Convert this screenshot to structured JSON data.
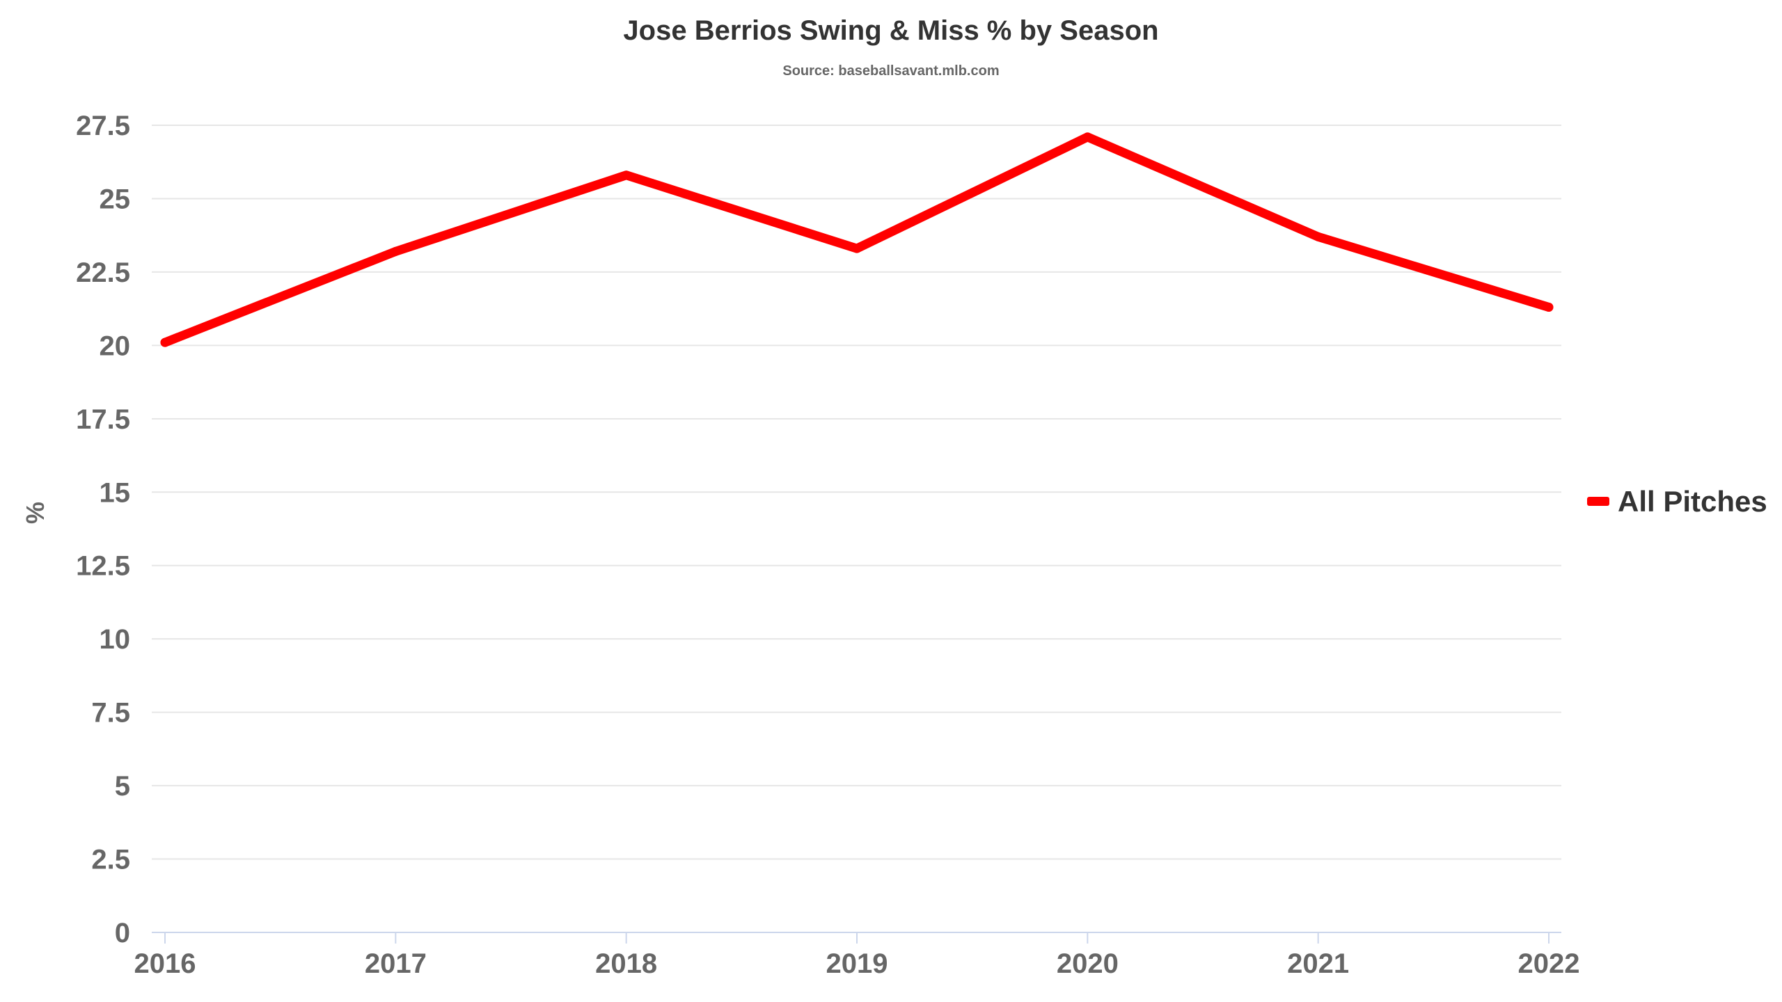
{
  "chart_data": {
    "type": "line",
    "title": "Jose Berrios Swing & Miss % by Season",
    "subtitle": "Source: baseballsavant.mlb.com",
    "xlabel": "",
    "ylabel": "%",
    "categories": [
      "2016",
      "2017",
      "2018",
      "2019",
      "2020",
      "2021",
      "2022"
    ],
    "series": [
      {
        "name": "All Pitches",
        "color": "#ff0000",
        "values": [
          20.1,
          23.2,
          25.8,
          23.3,
          27.1,
          23.7,
          21.3
        ]
      }
    ],
    "ylim": [
      0,
      27.5
    ],
    "yticks": [
      "0",
      "2.5",
      "5",
      "7.5",
      "10",
      "12.5",
      "15",
      "17.5",
      "20",
      "22.5",
      "25",
      "27.5"
    ],
    "grid": true,
    "legend_position": "right",
    "colors": {
      "grid": "#e6e6e6",
      "axis_line": "#ccd6eb",
      "tick_text": "#666666",
      "title_text": "#333333"
    }
  }
}
